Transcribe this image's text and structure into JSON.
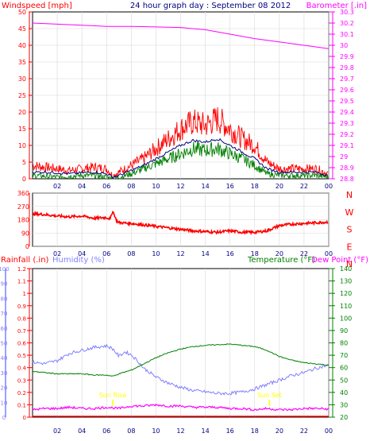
{
  "header": {
    "windspeed_label": "Windspeed [mph]",
    "title": "24 hour graph day : September 08 2012",
    "barometer_label": "Barometer [.in]"
  },
  "lower_header": {
    "rainfall_label": "Rainfall (.in)",
    "humidity_label": "Humidity (%)",
    "temperature_label": "Temperature (°F)",
    "dewpoint_label": "Dew Point (°F)"
  },
  "annotations": {
    "sunrise": "Sun Rise",
    "sunset": "Sun Set"
  },
  "colors": {
    "wind": "#ff0000",
    "gust_avg": "#000080",
    "wind_low": "#008000",
    "barometer": "#ff00ff",
    "direction": "#ff0000",
    "humidity": "#8080ff",
    "temperature": "#008000",
    "dewpoint": "#ff00ff",
    "rain": "#ff0000",
    "sun_label": "#ffff00",
    "grid": "#d8d8d8"
  },
  "chart_data": [
    {
      "type": "line",
      "title": "24 hour graph day : September 08 2012",
      "x_ticks": [
        "02",
        "04",
        "06",
        "08",
        "10",
        "12",
        "14",
        "16",
        "18",
        "20",
        "22",
        "00"
      ],
      "xlim": [
        0,
        24
      ],
      "y_left": {
        "label": "Windspeed [mph]",
        "ticks": [
          "0",
          "5",
          "10",
          "15",
          "20",
          "25",
          "30",
          "35",
          "40",
          "45",
          "50"
        ],
        "range": [
          0,
          50
        ]
      },
      "y_right": {
        "label": "Barometer [.in]",
        "ticks": [
          "28.8",
          "28.9",
          "29",
          "29.1",
          "29.2",
          "29.3",
          "29.4",
          "29.5",
          "29.6",
          "29.7",
          "29.8",
          "29.9",
          "30",
          "30.1",
          "30.2",
          "30.3"
        ],
        "range": [
          28.8,
          30.3
        ]
      },
      "grid": true,
      "series": [
        {
          "axis": "left",
          "x": [
            0,
            1,
            2,
            3,
            4,
            5,
            6,
            6.5,
            7,
            8,
            9,
            10,
            11,
            12,
            13,
            14,
            15,
            16,
            17,
            18,
            19,
            20,
            21,
            22,
            23,
            24
          ],
          "values": [
            4,
            3.5,
            3,
            2.5,
            3,
            3.5,
            3,
            1,
            2,
            4,
            6,
            9,
            12,
            15,
            17,
            16,
            18,
            15,
            12,
            10,
            5,
            3,
            3,
            3,
            3,
            1.5
          ]
        },
        {
          "axis": "left",
          "x": [
            0,
            1,
            2,
            3,
            4,
            5,
            6,
            6.5,
            7,
            8,
            9,
            10,
            11,
            12,
            13,
            14,
            15,
            16,
            17,
            18,
            19,
            20,
            21,
            22,
            23,
            24
          ],
          "values": [
            2,
            2,
            1.8,
            1.5,
            1.8,
            2,
            1.5,
            0.5,
            1,
            2.5,
            4,
            6,
            8,
            10,
            11.5,
            11,
            12,
            10,
            8,
            6,
            3,
            2,
            2,
            2,
            2,
            1
          ]
        },
        {
          "axis": "left",
          "x": [
            0,
            1,
            2,
            3,
            4,
            5,
            6,
            6.5,
            7,
            8,
            9,
            10,
            11,
            12,
            13,
            14,
            15,
            16,
            17,
            18,
            19,
            20,
            21,
            22,
            23,
            24
          ],
          "values": [
            1,
            0.8,
            0.5,
            0.8,
            1,
            1,
            0.5,
            0,
            0.5,
            1.5,
            3,
            4.5,
            6,
            7.5,
            9,
            8.5,
            9,
            7.5,
            6,
            4,
            1.5,
            1,
            1,
            1,
            1,
            0.5
          ]
        },
        {
          "axis": "right",
          "x": [
            0,
            2,
            4,
            6,
            8,
            10,
            12,
            14,
            16,
            18,
            20,
            22,
            24
          ],
          "values": [
            30.2,
            30.19,
            30.18,
            30.17,
            30.17,
            30.165,
            30.16,
            30.14,
            30.1,
            30.06,
            30.03,
            30.0,
            29.97
          ]
        }
      ]
    },
    {
      "type": "line",
      "x_ticks": [
        "02",
        "04",
        "06",
        "08",
        "10",
        "12",
        "14",
        "16",
        "18",
        "20",
        "22",
        "00"
      ],
      "xlim": [
        0,
        24
      ],
      "y_left": {
        "ticks": [
          "360",
          "270",
          "180",
          "90",
          "0"
        ],
        "range": [
          0,
          360
        ]
      },
      "y_right": {
        "ticks": [
          "N",
          "W",
          "S",
          "E",
          "N"
        ]
      },
      "series": [
        {
          "x": [
            0,
            1,
            2,
            3,
            4,
            5,
            6,
            6.3,
            6.5,
            6.8,
            7,
            8,
            9,
            10,
            11,
            12,
            13,
            14,
            15,
            16,
            17,
            18,
            19,
            20,
            21,
            22,
            23,
            24
          ],
          "values": [
            220,
            215,
            205,
            200,
            205,
            190,
            195,
            185,
            240,
            175,
            160,
            155,
            145,
            135,
            125,
            115,
            105,
            100,
            95,
            105,
            95,
            95,
            105,
            140,
            150,
            155,
            160,
            165
          ]
        }
      ]
    },
    {
      "type": "line",
      "x_ticks": [
        "02",
        "04",
        "06",
        "08",
        "10",
        "12",
        "14",
        "16",
        "18",
        "20",
        "22",
        "00"
      ],
      "xlim": [
        0,
        24
      ],
      "y_left_rain": {
        "label": "Rainfall (.in)",
        "ticks": [
          "0",
          "0.1",
          "0.2",
          "0.3",
          "0.4",
          "0.5",
          "0.6",
          "0.7",
          "0.8",
          "0.9",
          "1",
          "1.1",
          "1.2"
        ],
        "range": [
          0,
          1.2
        ]
      },
      "y_left_humidity": {
        "label": "Humidity (%)",
        "ticks": [
          "0",
          "10",
          "20",
          "30",
          "40",
          "50",
          "60",
          "70",
          "80",
          "90",
          "100"
        ],
        "range": [
          0,
          100
        ]
      },
      "y_right": {
        "label": "Temperature (°F)",
        "ticks": [
          "20",
          "30",
          "40",
          "50",
          "60",
          "70",
          "80",
          "90",
          "100",
          "110",
          "120",
          "130",
          "140"
        ],
        "range": [
          20,
          140
        ]
      },
      "series": [
        {
          "name": "Humidity (%)",
          "axis": "humidity",
          "x": [
            0,
            1,
            2,
            3,
            4,
            5,
            6,
            6.5,
            7,
            7.5,
            8,
            8.5,
            9,
            10,
            11,
            12,
            13,
            14,
            15,
            16,
            17,
            18,
            19,
            20,
            21,
            22,
            23,
            24
          ],
          "values": [
            37,
            36,
            38,
            43,
            45,
            47,
            48,
            46,
            41,
            44,
            42,
            38,
            33,
            27,
            23,
            20,
            18,
            17,
            16,
            16,
            17,
            19,
            22,
            25,
            28,
            30,
            33,
            35
          ]
        },
        {
          "name": "Temperature (°F)",
          "axis": "right",
          "x": [
            0,
            1,
            2,
            3,
            4,
            5,
            6,
            6.5,
            7,
            8,
            9,
            10,
            11,
            12,
            13,
            14,
            15,
            16,
            17,
            18,
            19,
            20,
            21,
            22,
            23,
            24
          ],
          "values": [
            57,
            56,
            55,
            55,
            55,
            54,
            54,
            53,
            55,
            58,
            63,
            68,
            72,
            75,
            77,
            78,
            78.5,
            79,
            78,
            77,
            74,
            69,
            66,
            64,
            63,
            62
          ]
        },
        {
          "name": "Dew Point (°F)",
          "axis": "right",
          "x": [
            0,
            1,
            2,
            3,
            4,
            5,
            6,
            7,
            8,
            9,
            10,
            11,
            12,
            13,
            14,
            15,
            16,
            17,
            18,
            19,
            20,
            21,
            22,
            23,
            24
          ],
          "values": [
            26,
            27,
            27,
            28,
            27,
            27,
            28,
            27,
            29,
            29,
            30,
            29,
            29,
            28,
            28,
            28,
            27,
            27,
            26,
            27,
            26,
            26,
            27,
            27,
            26.5
          ]
        },
        {
          "name": "Rainfall (.in)",
          "axis": "rain",
          "x": [
            0,
            24
          ],
          "values": [
            0,
            0
          ]
        }
      ],
      "annotations": [
        {
          "text": "Sun Rise",
          "x": 6.5
        },
        {
          "text": "Sun Set",
          "x": 19.2
        }
      ]
    }
  ]
}
